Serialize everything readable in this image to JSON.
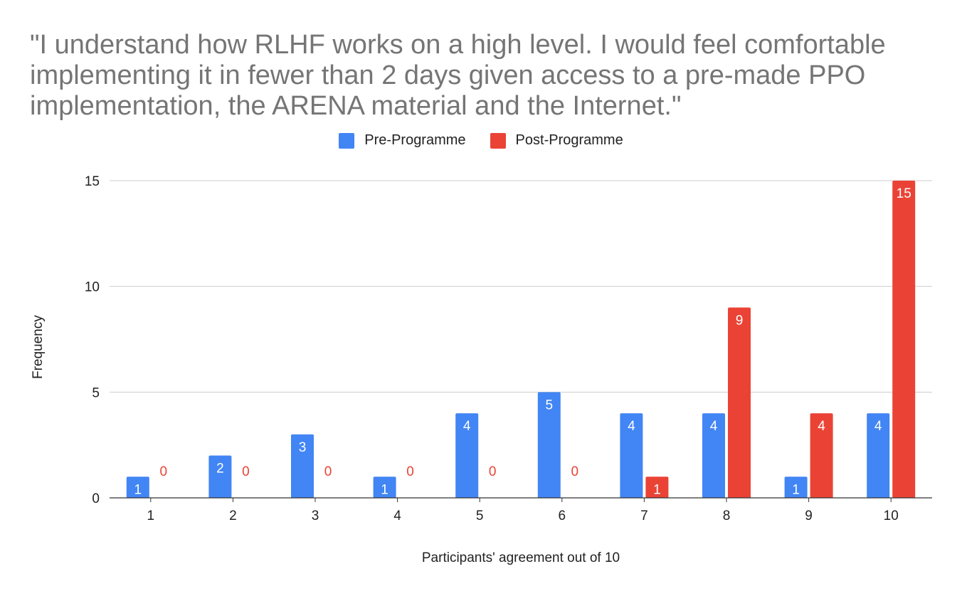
{
  "chart_data": {
    "type": "bar",
    "title": "\"I understand how RLHF works on a high level. I would feel comfortable implementing it in fewer than 2 days given access to a pre-made PPO implementation, the ARENA material and the Internet.\"",
    "xlabel": "Participants' agreement out of 10",
    "ylabel": "Frequency",
    "ylim": [
      0,
      15
    ],
    "yticks": [
      "0",
      "5",
      "10",
      "15"
    ],
    "categories": [
      "1",
      "2",
      "3",
      "4",
      "5",
      "6",
      "7",
      "8",
      "9",
      "10"
    ],
    "series": [
      {
        "name": "Pre-Programme",
        "color": "#4285F4",
        "values": [
          1,
          2,
          3,
          1,
          4,
          5,
          4,
          4,
          1,
          4
        ]
      },
      {
        "name": "Post-Programme",
        "color": "#EA4335",
        "values": [
          0,
          0,
          0,
          0,
          0,
          0,
          1,
          9,
          4,
          15
        ]
      }
    ],
    "grid": true,
    "legend_position": "top-center",
    "data_labels": true
  }
}
